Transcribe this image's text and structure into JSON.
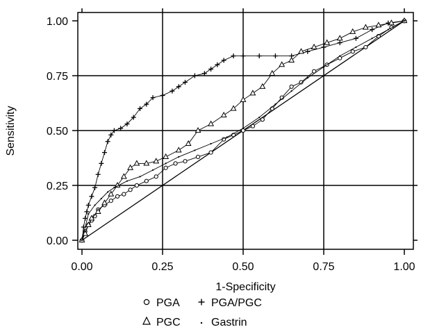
{
  "chart_data": {
    "type": "line",
    "title": "",
    "xlabel": "1-Specificity",
    "ylabel": "Sensitivity",
    "xlim": [
      0,
      1
    ],
    "ylim": [
      0,
      1
    ],
    "x_ticks": [
      "0.00",
      "0.25",
      "0.50",
      "0.75",
      "1.00"
    ],
    "y_ticks": [
      "0.00",
      "0.25",
      "0.50",
      "0.75",
      "1.00"
    ],
    "grid": true,
    "legend_position": "bottom",
    "legend": [
      {
        "name": "PGA",
        "marker": "circle"
      },
      {
        "name": "PGA/PGC",
        "marker": "plus"
      },
      {
        "name": "PGC",
        "marker": "triangle"
      },
      {
        "name": "Gastrin",
        "marker": "dot"
      }
    ],
    "series": [
      {
        "name": "PGA",
        "marker": "circle",
        "x": [
          0.0,
          0.01,
          0.02,
          0.03,
          0.04,
          0.05,
          0.07,
          0.09,
          0.11,
          0.13,
          0.15,
          0.17,
          0.2,
          0.23,
          0.26,
          0.29,
          0.32,
          0.36,
          0.4,
          0.44,
          0.47,
          0.5,
          0.53,
          0.56,
          0.59,
          0.62,
          0.65,
          0.68,
          0.72,
          0.76,
          0.8,
          0.84,
          0.88,
          0.92,
          0.96,
          1.0
        ],
        "y": [
          0.0,
          0.04,
          0.07,
          0.09,
          0.11,
          0.14,
          0.16,
          0.18,
          0.2,
          0.21,
          0.23,
          0.25,
          0.27,
          0.29,
          0.33,
          0.35,
          0.36,
          0.38,
          0.4,
          0.46,
          0.48,
          0.5,
          0.52,
          0.55,
          0.6,
          0.65,
          0.7,
          0.72,
          0.77,
          0.8,
          0.83,
          0.86,
          0.88,
          0.93,
          0.97,
          1.0
        ]
      },
      {
        "name": "PGA/PGC",
        "marker": "plus",
        "x": [
          0.0,
          0.005,
          0.01,
          0.015,
          0.02,
          0.03,
          0.04,
          0.05,
          0.06,
          0.07,
          0.08,
          0.09,
          0.1,
          0.12,
          0.14,
          0.16,
          0.18,
          0.2,
          0.22,
          0.25,
          0.28,
          0.3,
          0.32,
          0.35,
          0.38,
          0.4,
          0.42,
          0.44,
          0.47,
          0.5,
          0.55,
          0.6,
          0.65,
          0.7,
          0.75,
          0.8,
          0.85,
          0.9,
          0.95,
          1.0
        ],
        "y": [
          0.0,
          0.06,
          0.1,
          0.13,
          0.16,
          0.2,
          0.24,
          0.3,
          0.35,
          0.4,
          0.45,
          0.48,
          0.5,
          0.51,
          0.53,
          0.56,
          0.6,
          0.62,
          0.65,
          0.66,
          0.68,
          0.7,
          0.72,
          0.75,
          0.76,
          0.78,
          0.8,
          0.82,
          0.84,
          0.84,
          0.84,
          0.84,
          0.84,
          0.86,
          0.88,
          0.9,
          0.92,
          0.96,
          0.99,
          1.0
        ]
      },
      {
        "name": "PGC",
        "marker": "triangle",
        "x": [
          0.0,
          0.01,
          0.02,
          0.03,
          0.05,
          0.07,
          0.09,
          0.11,
          0.13,
          0.15,
          0.17,
          0.2,
          0.23,
          0.26,
          0.3,
          0.33,
          0.36,
          0.4,
          0.44,
          0.47,
          0.5,
          0.53,
          0.56,
          0.59,
          0.62,
          0.65,
          0.68,
          0.72,
          0.76,
          0.8,
          0.84,
          0.88,
          0.92,
          0.96,
          1.0
        ],
        "y": [
          0.0,
          0.03,
          0.07,
          0.1,
          0.13,
          0.17,
          0.21,
          0.25,
          0.29,
          0.33,
          0.35,
          0.35,
          0.36,
          0.38,
          0.41,
          0.44,
          0.5,
          0.53,
          0.57,
          0.6,
          0.64,
          0.67,
          0.7,
          0.76,
          0.8,
          0.82,
          0.86,
          0.88,
          0.9,
          0.92,
          0.95,
          0.97,
          0.98,
          0.99,
          1.0
        ]
      },
      {
        "name": "Gastrin",
        "marker": "dot",
        "x": [
          0.0,
          0.02,
          0.04,
          0.06,
          0.08,
          0.1,
          0.14,
          0.18,
          0.22,
          0.26,
          0.3,
          0.35,
          0.4,
          0.45,
          0.5,
          0.55,
          0.6,
          0.65,
          0.7,
          0.75,
          0.8,
          0.85,
          0.9,
          0.95,
          1.0
        ],
        "y": [
          0.0,
          0.12,
          0.16,
          0.19,
          0.22,
          0.24,
          0.27,
          0.29,
          0.32,
          0.35,
          0.38,
          0.41,
          0.44,
          0.47,
          0.51,
          0.56,
          0.62,
          0.68,
          0.74,
          0.79,
          0.84,
          0.88,
          0.92,
          0.96,
          1.0
        ]
      }
    ],
    "reference_line": {
      "x": [
        0,
        1
      ],
      "y": [
        0,
        1
      ]
    }
  }
}
